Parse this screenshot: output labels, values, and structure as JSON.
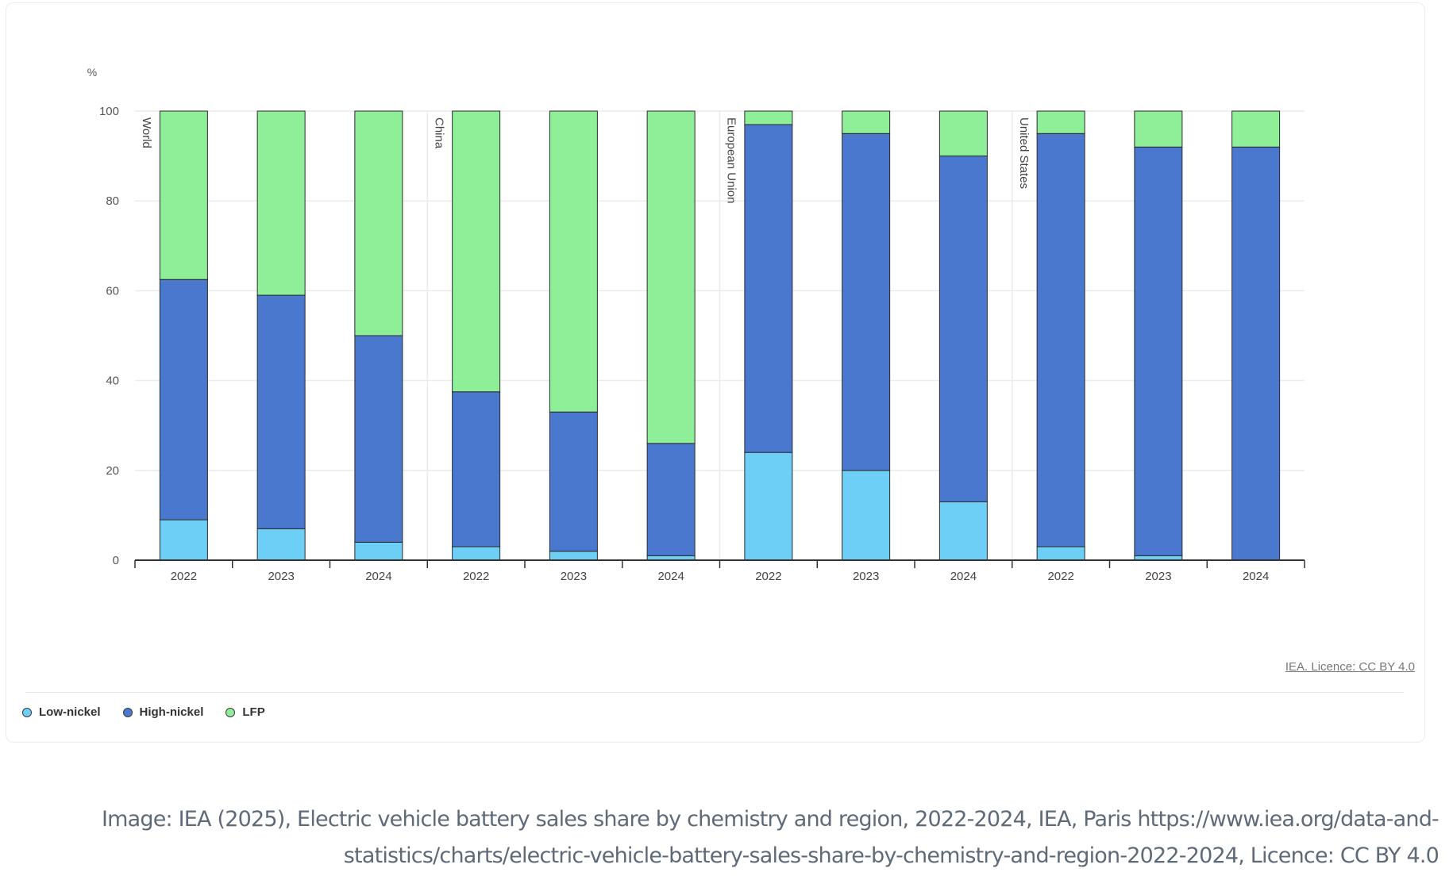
{
  "chart_data": {
    "type": "bar",
    "stacked": true,
    "ylabel": "%",
    "ylim": [
      0,
      100
    ],
    "yticks": [
      0,
      20,
      40,
      60,
      80,
      100
    ],
    "grid": true,
    "legend_position": "bottom-left",
    "groups": [
      {
        "name": "World",
        "categories": [
          "2022",
          "2023",
          "2024"
        ]
      },
      {
        "name": "China",
        "categories": [
          "2022",
          "2023",
          "2024"
        ]
      },
      {
        "name": "European Union",
        "categories": [
          "2022",
          "2023",
          "2024"
        ]
      },
      {
        "name": "United States",
        "categories": [
          "2022",
          "2023",
          "2024"
        ]
      }
    ],
    "series": [
      {
        "name": "Low-nickel",
        "color": "#6dcff6",
        "values": [
          9,
          7,
          4,
          3,
          2,
          1,
          24,
          20,
          13,
          3,
          1,
          0
        ]
      },
      {
        "name": "High-nickel",
        "color": "#4a78cf",
        "values": [
          53.5,
          52,
          46,
          34.5,
          31,
          25,
          73,
          75,
          77,
          92,
          91,
          92
        ]
      },
      {
        "name": "LFP",
        "color": "#8eef98",
        "values": [
          37.5,
          41,
          50,
          62.5,
          67,
          74,
          3,
          5,
          10,
          5,
          8,
          8
        ]
      }
    ]
  },
  "legend": {
    "items": [
      {
        "label": "Low-nickel",
        "color": "#6dcff6"
      },
      {
        "label": "High-nickel",
        "color": "#4a78cf"
      },
      {
        "label": "LFP",
        "color": "#8eef98"
      }
    ]
  },
  "licence": "IEA. Licence: CC BY 4.0",
  "caption": "Image: IEA (2025), Electric vehicle battery sales share by chemistry and region, 2022-2024, IEA, Paris https://www.iea.org/data-and-statistics/charts/electric-vehicle-battery-sales-share-by-chemistry-and-region-2022-2024, Licence: CC BY 4.0"
}
